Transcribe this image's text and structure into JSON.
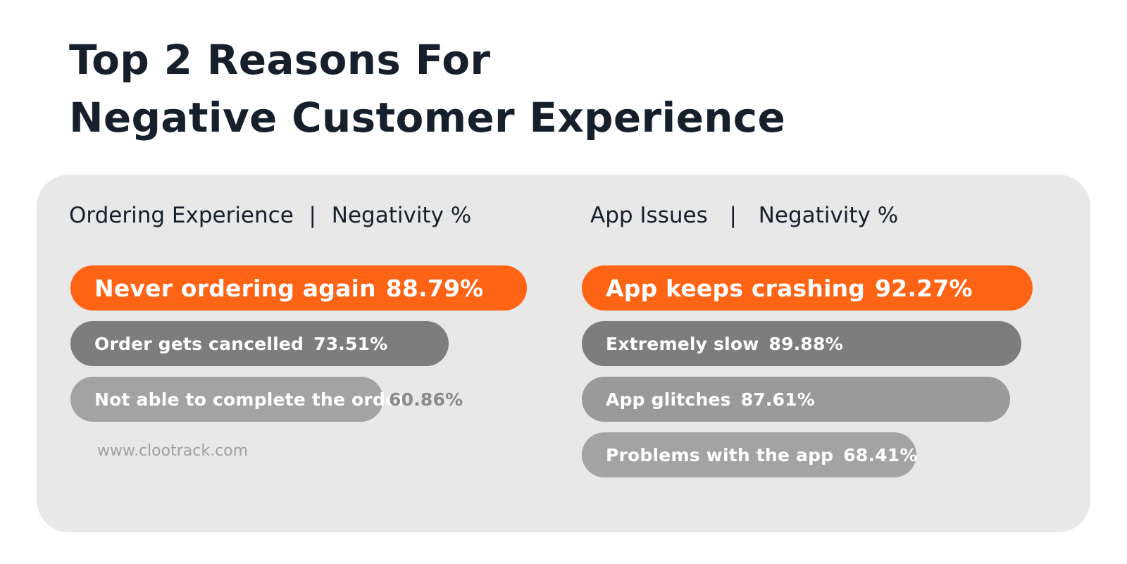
{
  "title": {
    "line1": "Top 2 Reasons For",
    "line2": "Negative Customer Experience"
  },
  "colors": {
    "background": "#ffffff",
    "panel": "#e8e8e8",
    "title_text": "#16202c",
    "top_bar": "#ff6314",
    "bar_dark": "#7d7d7d",
    "bar_mid": "#9a9a9a",
    "bar_light": "#a3a3a3",
    "outside_value_text": "#8a8a8a",
    "watermark": "#a0a0a0"
  },
  "watermark": "www.clootrack.com",
  "chart_data": [
    {
      "type": "bar",
      "orientation": "horizontal",
      "category_label": "Ordering Experience",
      "separator": "|",
      "value_label": "Negativity %",
      "unit": "%",
      "categories": [
        "Never ordering again",
        "Order gets cancelled",
        "Not able to complete the order"
      ],
      "values": [
        88.79,
        73.51,
        60.86
      ],
      "value_labels": [
        "88.79%",
        "73.51%",
        "60.86%"
      ],
      "highlight_index": 0,
      "bar_colors": [
        "#ff6314",
        "#7d7d7d",
        "#a3a3a3"
      ],
      "value_outside": [
        false,
        false,
        true
      ]
    },
    {
      "type": "bar",
      "orientation": "horizontal",
      "category_label": "App Issues",
      "separator": "|",
      "value_label": "Negativity %",
      "unit": "%",
      "categories": [
        "App keeps crashing",
        "Extremely slow",
        "App glitches",
        "Problems with the app"
      ],
      "values": [
        92.27,
        89.88,
        87.61,
        68.41
      ],
      "value_labels": [
        "92.27%",
        "89.88%",
        "87.61%",
        "68.41%"
      ],
      "highlight_index": 0,
      "bar_colors": [
        "#ff6314",
        "#7d7d7d",
        "#9a9a9a",
        "#a3a3a3"
      ],
      "value_outside": [
        false,
        false,
        false,
        false
      ]
    }
  ]
}
